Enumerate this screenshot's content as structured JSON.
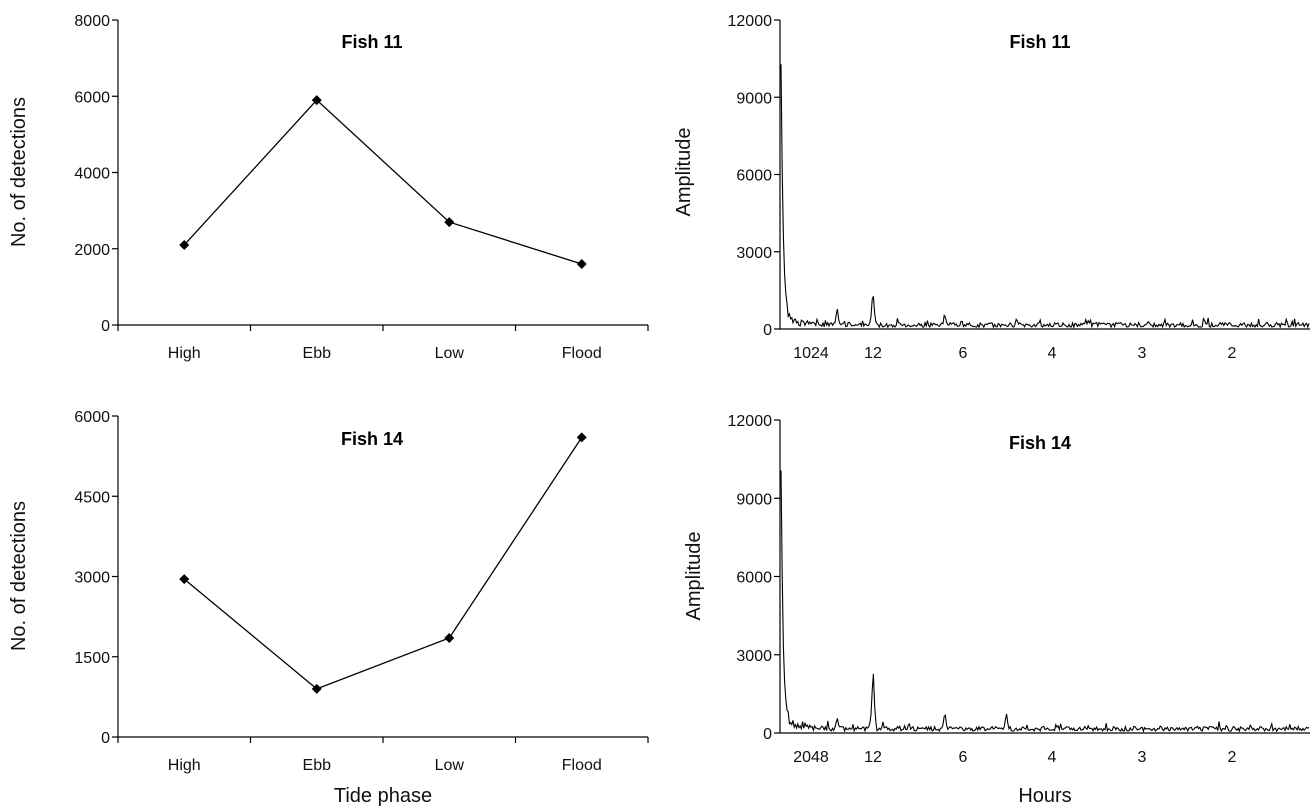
{
  "chart_data": [
    {
      "type": "line",
      "title": "Fish 11",
      "xlabel": "",
      "ylabel": "No. of detections",
      "categories": [
        "High",
        "Ebb",
        "Low",
        "Flood"
      ],
      "values": [
        2100,
        5900,
        2700,
        1600
      ],
      "yticks": [
        0,
        2000,
        4000,
        6000,
        8000
      ],
      "ylim": [
        0,
        8000
      ],
      "marker": "diamond",
      "grid": false
    },
    {
      "type": "line",
      "title": "Fish 11",
      "xlabel": "",
      "ylabel": "Amplitude",
      "x_tick_labels": [
        "1024",
        "12",
        "6",
        "4",
        "3",
        "2"
      ],
      "yticks": [
        0,
        3000,
        6000,
        9000,
        12000
      ],
      "ylim": [
        0,
        12000
      ],
      "x_scale": "frequency (period in hours)",
      "peaks_by_period_hours": [
        {
          "period": 1024,
          "amplitude": 9700
        },
        {
          "period": 24,
          "amplitude": 1000
        },
        {
          "period": 12,
          "amplitude": 2000
        },
        {
          "period": 6,
          "amplitude": 800
        },
        {
          "period": 4,
          "amplitude": 550
        },
        {
          "period": 3,
          "amplitude": 450
        }
      ],
      "background_amplitude": 200,
      "grid": false
    },
    {
      "type": "line",
      "title": "Fish 14",
      "xlabel": "Tide phase",
      "ylabel": "No. of detections",
      "categories": [
        "High",
        "Ebb",
        "Low",
        "Flood"
      ],
      "values": [
        2950,
        900,
        1850,
        5600
      ],
      "yticks": [
        0,
        1500,
        3000,
        4500,
        6000
      ],
      "ylim": [
        0,
        6000
      ],
      "marker": "diamond",
      "grid": false
    },
    {
      "type": "line",
      "title": "Fish 14",
      "xlabel": "Hours",
      "ylabel": "Amplitude",
      "x_tick_labels": [
        "2048",
        "12",
        "6",
        "4",
        "3",
        "2"
      ],
      "yticks": [
        0,
        3000,
        6000,
        9000,
        12000
      ],
      "ylim": [
        0,
        12000
      ],
      "x_scale": "frequency (period in hours)",
      "peaks_by_period_hours": [
        {
          "period": 2048,
          "amplitude": 9500
        },
        {
          "period": 24,
          "amplitude": 800
        },
        {
          "period": 12,
          "amplitude": 3000
        },
        {
          "period": 8,
          "amplitude": 500
        },
        {
          "period": 6,
          "amplitude": 1100
        },
        {
          "period": 4.2,
          "amplitude": 1000
        },
        {
          "period": 3,
          "amplitude": 350
        }
      ],
      "background_amplitude": 200,
      "grid": false
    }
  ]
}
